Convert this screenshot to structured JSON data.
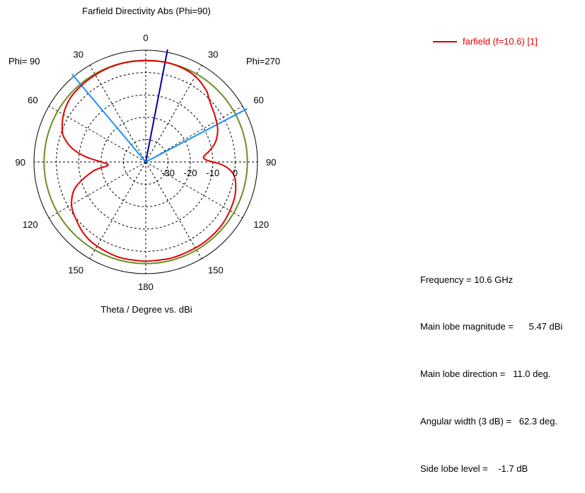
{
  "chart_data": {
    "type": "polar",
    "title": "Farfield Directivity Abs (Phi=90)",
    "xlabel": "Theta / Degree vs. dBi",
    "phi_left_label": "Phi= 90",
    "phi_right_label": "Phi=270",
    "angle_ticks": [
      {
        "angle": 0,
        "label": "0"
      },
      {
        "angle": 30,
        "label": "30"
      },
      {
        "angle": 60,
        "label": "60"
      },
      {
        "angle": 90,
        "label": "90"
      },
      {
        "angle": 120,
        "label": "120"
      },
      {
        "angle": 150,
        "label": "150"
      },
      {
        "angle": 180,
        "label": "180"
      },
      {
        "angle": -150,
        "label": "150"
      },
      {
        "angle": -120,
        "label": "120"
      },
      {
        "angle": -90,
        "label": "90"
      },
      {
        "angle": -60,
        "label": "60"
      },
      {
        "angle": -30,
        "label": "30"
      }
    ],
    "radial_range": [
      -40,
      10
    ],
    "radial_ticks": [
      {
        "value": -30,
        "label": "-30"
      },
      {
        "value": -20,
        "label": "-20"
      },
      {
        "value": -10,
        "label": "-10"
      },
      {
        "value": 0,
        "label": "0"
      }
    ],
    "reference_level": 5.47,
    "main_lobe_direction": 11.0,
    "beam_lines": [
      -40,
      62.3
    ],
    "series": [
      {
        "name": "farfield (f=10.6) [1]",
        "color": "#e00000",
        "angles": [
          -180,
          -165,
          -150,
          -140,
          -130,
          -120,
          -110,
          -100,
          -95,
          -90,
          -85,
          -80,
          -75,
          -70,
          -60,
          -50,
          -40,
          -30,
          -20,
          -10,
          0,
          10,
          20,
          30,
          40,
          45,
          50,
          55,
          60,
          65,
          70,
          75,
          80,
          85,
          88,
          90,
          92,
          95,
          100,
          110,
          120,
          130,
          140,
          150,
          165,
          180
        ],
        "values": [
          4.5,
          4.3,
          3.5,
          2.5,
          0.5,
          -1.7,
          -6.5,
          -16,
          -23,
          -20,
          -13,
          -7,
          -3,
          -0.3,
          2.5,
          4.2,
          4.7,
          5.0,
          5.3,
          5.4,
          5.3,
          5.47,
          5.2,
          4.3,
          2.0,
          0.0,
          -1.5,
          -2.5,
          -3.5,
          -4.5,
          -6,
          -8,
          -11,
          -14,
          -13,
          -10,
          -6,
          -2.5,
          0.5,
          2.6,
          3.5,
          4.2,
          4.4,
          4.4,
          4.5,
          4.5
        ]
      }
    ]
  },
  "legend": {
    "label": "farfield (f=10.6) [1]",
    "color": "#e00000"
  },
  "info": {
    "frequency": "Frequency = 10.6 GHz",
    "main_lobe_magnitude": "Main lobe magnitude =      5.47 dBi",
    "main_lobe_direction": "Main lobe direction =   11.0 deg.",
    "angular_width": "Angular width (3 dB) =   62.3 deg.",
    "side_lobe_level": "Side lobe level =    -1.7 dB"
  },
  "colors": {
    "grid": "#000000",
    "reference_circle": "#6b8e23",
    "main_lobe_line": "#0000aa",
    "beam_lines": "#1e90ff"
  }
}
